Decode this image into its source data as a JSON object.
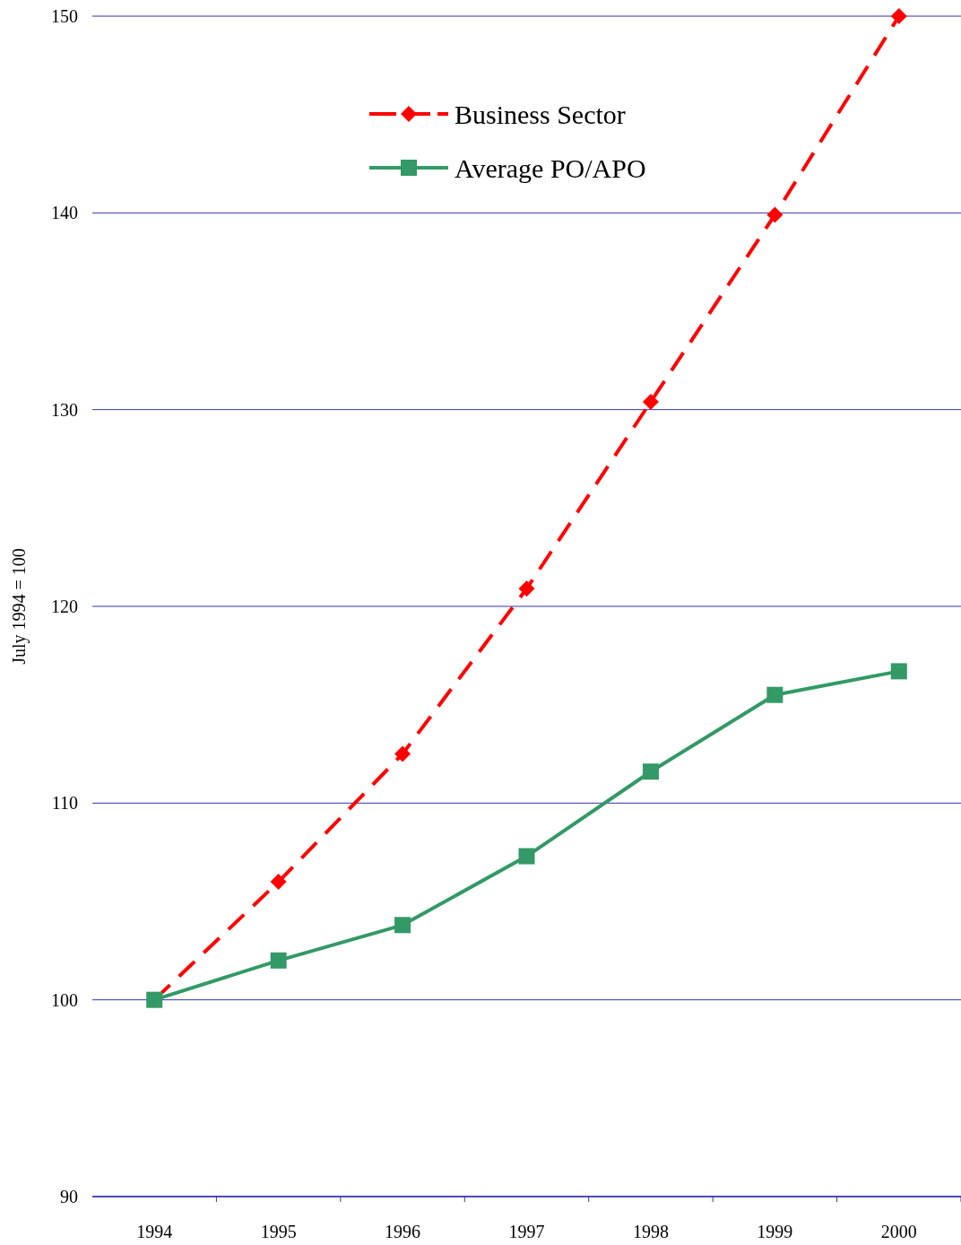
{
  "chart_data": {
    "type": "line",
    "ylabel": "July 1994 = 100",
    "categories": [
      "1994",
      "1995",
      "1996",
      "1997",
      "1998",
      "1999",
      "2000"
    ],
    "series": [
      {
        "name": "Business Sector",
        "color": "#ff0000",
        "marker": "diamond",
        "line_style": "dashed",
        "values": [
          100,
          106,
          112.5,
          120.9,
          130.4,
          139.9,
          150
        ]
      },
      {
        "name": "Average PO/APO",
        "color": "#339966",
        "marker": "square",
        "line_style": "solid",
        "values": [
          100,
          102,
          103.8,
          107.3,
          111.6,
          115.5,
          116.7
        ]
      }
    ],
    "ylim": [
      90,
      150
    ],
    "yticks": [
      90,
      100,
      110,
      120,
      130,
      140,
      150
    ],
    "grid": "y",
    "legend": "top"
  }
}
